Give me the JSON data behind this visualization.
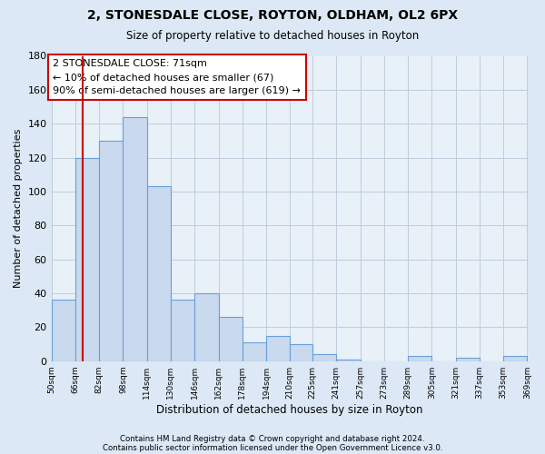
{
  "title": "2, STONESDALE CLOSE, ROYTON, OLDHAM, OL2 6PX",
  "subtitle": "Size of property relative to detached houses in Royton",
  "xlabel": "Distribution of detached houses by size in Royton",
  "ylabel": "Number of detached properties",
  "bar_edges": [
    50,
    66,
    82,
    98,
    114,
    130,
    146,
    162,
    178,
    194,
    210,
    225,
    241,
    257,
    273,
    289,
    305,
    321,
    337,
    353,
    369
  ],
  "bar_heights": [
    36,
    120,
    130,
    144,
    103,
    36,
    40,
    26,
    11,
    15,
    10,
    4,
    1,
    0,
    0,
    3,
    0,
    2,
    0,
    3
  ],
  "bar_color": "#c9d9ee",
  "bar_edge_color": "#6a9fd8",
  "vline_x": 71,
  "vline_color": "#cc0000",
  "ylim": [
    0,
    180
  ],
  "yticks": [
    0,
    20,
    40,
    60,
    80,
    100,
    120,
    140,
    160,
    180
  ],
  "xtick_labels": [
    "50sqm",
    "66sqm",
    "82sqm",
    "98sqm",
    "114sqm",
    "130sqm",
    "146sqm",
    "162sqm",
    "178sqm",
    "194sqm",
    "210sqm",
    "225sqm",
    "241sqm",
    "257sqm",
    "273sqm",
    "289sqm",
    "305sqm",
    "321sqm",
    "337sqm",
    "353sqm",
    "369sqm"
  ],
  "annotation_title": "2 STONESDALE CLOSE: 71sqm",
  "annotation_line1": "← 10% of detached houses are smaller (67)",
  "annotation_line2": "90% of semi-detached houses are larger (619) →",
  "footer1": "Contains HM Land Registry data © Crown copyright and database right 2024.",
  "footer2": "Contains public sector information licensed under the Open Government Licence v3.0.",
  "bg_color": "#dce8f5",
  "plot_bg_color": "#e8f0f8",
  "grid_color": "#c0ccdc"
}
